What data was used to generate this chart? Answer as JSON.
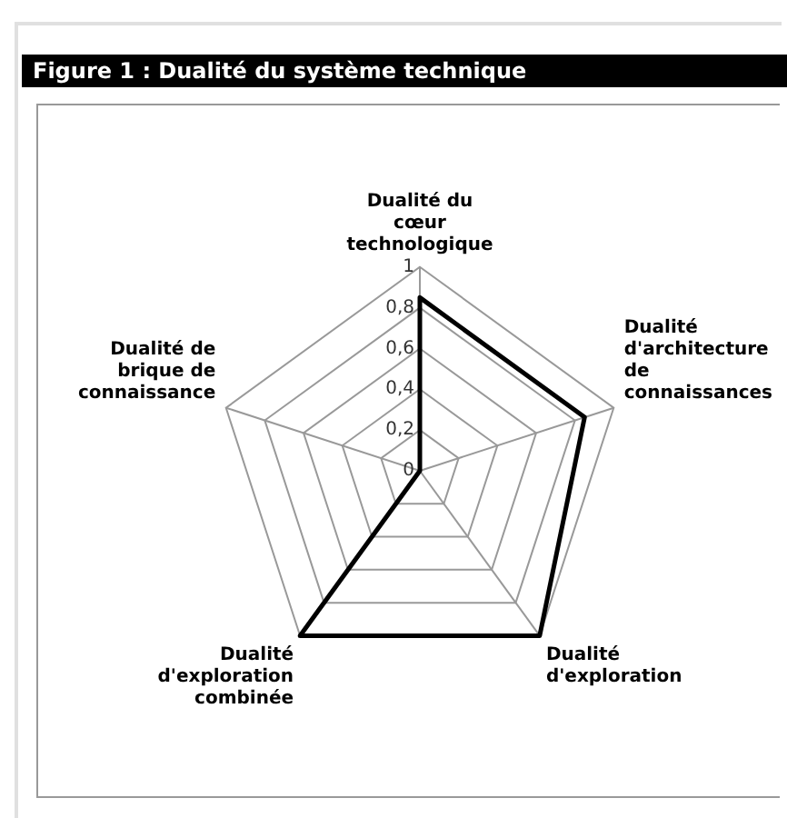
{
  "chart_data": {
    "type": "radar",
    "title": "Figure 1 : Dualité du système technique",
    "categories": [
      "Dualité du cœur technologique",
      "Dualité d'architecture de connaissances",
      "Dualité d'exploration",
      "Dualité d'exploration combinée",
      "Dualité de brique de connaissance"
    ],
    "series": [
      {
        "color": "#000000",
        "values": [
          0.85,
          0.85,
          1,
          1,
          0
        ]
      }
    ],
    "ylim": [
      0,
      1
    ],
    "yticks": [
      {
        "value": 0,
        "label": "0"
      },
      {
        "value": 0.2,
        "label": "0,2"
      },
      {
        "value": 0.4,
        "label": "0,4"
      },
      {
        "value": 0.6,
        "label": "0,6"
      },
      {
        "value": 0.8,
        "label": "0,8"
      },
      {
        "value": 1,
        "label": "1"
      }
    ],
    "grid": true,
    "marker": "none",
    "legend": false
  }
}
